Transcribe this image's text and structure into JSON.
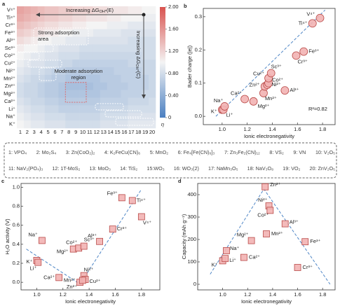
{
  "chart_data": [
    {
      "type": "heatmap",
      "panel": "a",
      "rows": [
        "V⁴⁺",
        "Ti⁴⁺",
        "Cr³⁺",
        "Fe³⁺",
        "Al³⁺",
        "Sc³⁺",
        "Co²⁺",
        "Cu²⁺",
        "Ni²⁺",
        "Mn²⁺",
        "Zn²⁺",
        "Mg²⁺",
        "Ca²⁺",
        "Li⁺",
        "Na⁺",
        "K⁺"
      ],
      "columns": [
        1,
        2,
        3,
        4,
        5,
        6,
        7,
        8,
        9,
        10,
        11,
        12,
        13,
        14,
        15,
        16,
        17,
        18,
        19,
        20
      ],
      "values": [
        [
          1.5,
          1.45,
          1.4,
          1.35,
          1.3,
          1.3,
          1.25,
          1.25,
          1.2,
          1.2,
          1.2,
          1.15,
          1.15,
          1.1,
          1.1,
          1.1,
          1.05,
          1.05,
          1.0,
          1.0
        ],
        [
          1.45,
          1.4,
          1.35,
          1.3,
          1.25,
          1.25,
          1.2,
          1.2,
          1.15,
          1.15,
          1.1,
          1.1,
          1.1,
          1.05,
          1.05,
          1.0,
          1.0,
          1.0,
          0.95,
          0.95
        ],
        [
          1.35,
          1.3,
          1.25,
          1.2,
          1.15,
          1.15,
          1.1,
          1.1,
          1.05,
          1.05,
          1.0,
          1.0,
          1.0,
          0.95,
          0.95,
          0.95,
          0.9,
          0.9,
          0.9,
          0.9
        ],
        [
          1.25,
          1.2,
          1.15,
          1.1,
          1.05,
          1.05,
          1.0,
          1.0,
          0.95,
          0.95,
          0.95,
          0.9,
          0.9,
          0.9,
          0.9,
          0.85,
          0.85,
          0.85,
          0.85,
          0.85
        ],
        [
          1.15,
          1.1,
          1.05,
          1.0,
          1.0,
          0.95,
          0.95,
          0.9,
          0.9,
          0.9,
          0.85,
          0.85,
          0.85,
          0.85,
          0.85,
          0.85,
          0.8,
          0.8,
          0.8,
          0.8
        ],
        [
          1.05,
          1.0,
          1.0,
          0.95,
          0.9,
          0.9,
          0.85,
          0.85,
          0.85,
          0.8,
          0.8,
          0.8,
          0.8,
          0.8,
          0.8,
          0.8,
          0.8,
          0.8,
          0.8,
          0.8
        ],
        [
          1.0,
          0.95,
          0.9,
          0.9,
          0.85,
          0.85,
          0.8,
          0.8,
          0.8,
          0.75,
          0.75,
          0.75,
          0.75,
          0.75,
          0.75,
          0.75,
          0.75,
          0.75,
          0.8,
          0.8
        ],
        [
          0.95,
          0.9,
          0.85,
          0.85,
          0.8,
          0.8,
          0.75,
          0.75,
          0.7,
          0.7,
          0.7,
          0.7,
          0.7,
          0.7,
          0.7,
          0.7,
          0.75,
          0.75,
          0.75,
          0.75
        ],
        [
          0.9,
          0.85,
          0.8,
          0.8,
          0.75,
          0.7,
          0.7,
          0.65,
          0.65,
          0.65,
          0.65,
          0.65,
          0.65,
          0.65,
          0.7,
          0.7,
          0.7,
          0.7,
          0.75,
          0.75
        ],
        [
          0.85,
          0.8,
          0.75,
          0.75,
          0.7,
          0.65,
          0.65,
          0.6,
          0.6,
          0.6,
          0.6,
          0.6,
          0.65,
          0.65,
          0.65,
          0.7,
          0.7,
          0.7,
          0.7,
          0.75
        ],
        [
          0.8,
          0.75,
          0.75,
          0.7,
          0.65,
          0.65,
          0.6,
          0.55,
          0.55,
          0.55,
          0.55,
          0.6,
          0.6,
          0.65,
          0.65,
          0.65,
          0.7,
          0.7,
          0.7,
          0.75
        ],
        [
          0.8,
          0.75,
          0.75,
          0.7,
          0.65,
          0.65,
          0.6,
          0.6,
          0.6,
          0.6,
          0.6,
          0.6,
          0.65,
          0.65,
          0.65,
          0.7,
          0.7,
          0.7,
          0.75,
          0.75
        ],
        [
          0.85,
          0.8,
          0.75,
          0.75,
          0.7,
          0.7,
          0.65,
          0.65,
          0.65,
          0.65,
          0.65,
          0.65,
          0.7,
          0.7,
          0.7,
          0.7,
          0.75,
          0.75,
          0.75,
          0.8
        ],
        [
          0.9,
          0.85,
          0.8,
          0.8,
          0.75,
          0.75,
          0.7,
          0.7,
          0.7,
          0.7,
          0.7,
          0.7,
          0.75,
          0.75,
          0.75,
          0.75,
          0.8,
          0.8,
          0.8,
          0.8
        ],
        [
          0.95,
          0.9,
          0.85,
          0.85,
          0.8,
          0.8,
          0.8,
          0.75,
          0.75,
          0.75,
          0.75,
          0.75,
          0.8,
          0.8,
          0.8,
          0.8,
          0.85,
          0.85,
          0.85,
          0.85
        ],
        [
          1.0,
          0.95,
          0.9,
          0.9,
          0.85,
          0.85,
          0.85,
          0.8,
          0.8,
          0.8,
          0.8,
          0.8,
          0.85,
          0.85,
          0.85,
          0.85,
          0.9,
          0.9,
          0.9,
          0.9
        ]
      ],
      "colormap": [
        "#4a7fc1",
        "#f4f4f4",
        "#d9534f"
      ],
      "colorbar": {
        "label": "η",
        "lim": [
          0,
          2
        ],
        "ticks": [
          0,
          {
            "value": 0.4,
            "label": "0.40"
          },
          {
            "value": 0.8,
            "label": "0.80"
          },
          {
            "value": 1.2,
            "label": "1.20"
          },
          {
            "value": 1.6,
            "label": "1.60"
          },
          {
            "value": 2,
            "label": "2.00"
          }
        ]
      },
      "arrow_h": {
        "text": "Increasing ΔG",
        "sub": "OH*",
        "tail": "(E)"
      },
      "arrow_v": {
        "text": "Increasing ΔG",
        "sub": "OH*",
        "tail": "(C)"
      },
      "strong_label": [
        "Strong adsorption",
        "area"
      ],
      "moderate_label": [
        "Moderate adsorption",
        "region"
      ]
    },
    {
      "type": "scatter",
      "panel": "b",
      "marker": "circle",
      "xlabel": "Ionic electronegativity",
      "ylabel": "Bader charge (|e|)",
      "labels": [
        "K⁺",
        "Li⁺",
        "Na⁺",
        "Ca²⁺",
        "Mg²⁺",
        "Mn²⁺",
        "Zn²⁺",
        "Ni²⁺",
        "Co²⁺",
        "Cu²⁺",
        "Sc³⁺",
        "Al³⁺",
        "Cr³⁺",
        "Fe³⁺",
        "Ti⁴⁺",
        "V⁴⁺"
      ],
      "x": [
        1.0,
        1.01,
        1.02,
        1.18,
        1.25,
        1.33,
        1.34,
        1.36,
        1.37,
        1.37,
        1.39,
        1.5,
        1.59,
        1.65,
        1.72,
        1.78
      ],
      "values": [
        0.02,
        0.02,
        0.03,
        0.052,
        0.045,
        0.07,
        0.09,
        0.095,
        0.1,
        0.115,
        0.13,
        0.078,
        0.183,
        0.195,
        0.28,
        0.296
      ],
      "fit": {
        "x": [
          0.95,
          1.82
        ],
        "y": [
          0.0,
          0.32
        ]
      },
      "annotation": "R²=0.82",
      "xlim": [
        0.85,
        1.9
      ],
      "ylim": [
        -0.025,
        0.325
      ],
      "xticks": [
        {
          "value": 1.0,
          "label": "1.0"
        },
        {
          "value": 1.2,
          "label": "1.2"
        },
        {
          "value": 1.4,
          "label": "1.4"
        },
        {
          "value": 1.6,
          "label": "1.6"
        },
        {
          "value": 1.8,
          "label": "1.8"
        }
      ],
      "yticks": [
        {
          "value": 0,
          "label": "0.0"
        },
        {
          "value": 0.1,
          "label": "0.1"
        },
        {
          "value": 0.2,
          "label": "0.2"
        },
        {
          "value": 0.3,
          "label": "0.3"
        }
      ]
    },
    {
      "type": "scatter",
      "panel": "c",
      "marker": "square",
      "xlabel": "Ionic electronegativity",
      "ylabel": "H₂O activity (V)",
      "labels": [
        "K⁺",
        "Li⁺",
        "Na⁺",
        "Ca²⁺",
        "Mg²⁺",
        "Co²⁺",
        "Sc³⁺",
        "Zn²⁺",
        "Ni²⁺",
        "Cu²⁺",
        "Mn²⁺",
        "Al³⁺",
        "Cr³⁺",
        "Fe³⁺",
        "Ti⁴⁺",
        "V⁴⁺"
      ],
      "x": [
        1.0,
        1.01,
        1.04,
        1.17,
        1.28,
        1.32,
        1.36,
        1.33,
        1.36,
        1.37,
        1.35,
        1.48,
        1.58,
        1.65,
        1.73,
        1.8
      ],
      "values": [
        0.23,
        0.21,
        0.44,
        0.05,
        0.35,
        0.36,
        0.38,
        0.0,
        0.07,
        0.03,
        0.02,
        0.43,
        0.56,
        0.89,
        0.86,
        0.69
      ],
      "fit": {
        "x": [
          0.92,
          1.33,
          1.8
        ],
        "y": [
          0.35,
          -0.02,
          0.98
        ]
      },
      "xlim": [
        0.88,
        1.94
      ],
      "ylim": [
        -0.08,
        1.04
      ],
      "xticks": [
        {
          "value": 1.0,
          "label": "1.0"
        },
        {
          "value": 1.2,
          "label": "1.2"
        },
        {
          "value": 1.4,
          "label": "1.4"
        },
        {
          "value": 1.6,
          "label": "1.6"
        },
        {
          "value": 1.8,
          "label": "1.8"
        }
      ],
      "yticks": [
        {
          "value": 0,
          "label": "0.0"
        },
        {
          "value": 0.2,
          "label": "0.2"
        },
        {
          "value": 0.4,
          "label": "0.4"
        },
        {
          "value": 0.6,
          "label": "0.6"
        },
        {
          "value": 0.8,
          "label": "0.8"
        },
        {
          "value": 1.0,
          "label": "1.0"
        }
      ]
    },
    {
      "type": "scatter",
      "panel": "d",
      "marker": "square",
      "xlabel": "Ionic electronegativity",
      "ylabel": "Capacity (mAh g⁻¹)",
      "labels": [
        "K⁺",
        "Li⁺",
        "Na⁺",
        "Ca²⁺",
        "Mg²⁺",
        "Zn²⁺",
        "Ni²⁺",
        "Co²⁺",
        "Mn²⁺",
        "Al³⁺",
        "Fe³⁺",
        "Cr³⁺"
      ],
      "x": [
        1.0,
        1.02,
        1.03,
        1.17,
        1.23,
        1.34,
        1.37,
        1.38,
        1.35,
        1.5,
        1.66,
        1.6
      ],
      "values": [
        105,
        115,
        150,
        120,
        195,
        435,
        350,
        330,
        225,
        270,
        190,
        75
      ],
      "fit": {
        "x": [
          0.9,
          1.33,
          1.86
        ],
        "y": [
          45,
          425,
          0
        ]
      },
      "xlim": [
        0.8,
        1.9
      ],
      "ylim": [
        -25,
        450
      ],
      "xticks": [
        {
          "value": 1.0,
          "label": "1.0"
        },
        {
          "value": 1.2,
          "label": "1.2"
        },
        {
          "value": 1.4,
          "label": "1.4"
        },
        {
          "value": 1.6,
          "label": "1.6"
        },
        {
          "value": 1.8,
          "label": "1.8"
        }
      ],
      "yticks": [
        0,
        100,
        200,
        300,
        400
      ]
    }
  ],
  "legend_box": {
    "items": [
      "1: VPO₄",
      "2: Mo₂S₄",
      "3: Zn(CoO₂)₂",
      "4: K₂FeCu(CN)₆",
      "5: MnO₂",
      "6: Fe₄[Fe(CN)₆]₃",
      "7: Zn₃Fe₂(CN)₁₂",
      "8: VS₂",
      "9: VN",
      "10: V₂O₅",
      "11: NaV₂(PO₄)₃",
      "12: 1T-MoS₂",
      "13: MoO₃",
      "14: TiS₂",
      "15:WO₃",
      "16: WO₃(2)",
      "17: NaMn₃O₅",
      "18: NaV₃O₈",
      "19: VO₂",
      "20: ZnV₂O₅"
    ]
  }
}
